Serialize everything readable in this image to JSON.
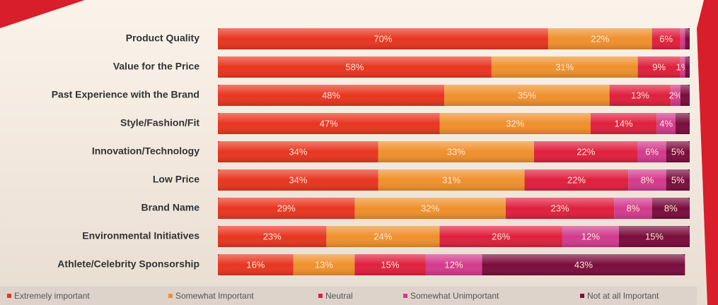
{
  "chart_data": {
    "type": "stacked-bar-horizontal",
    "categories": [
      "Product Quality",
      "Value for the Price",
      "Past Experience with the Brand",
      "Style/Fashion/Fit",
      "Innovation/Technology",
      "Low Price",
      "Brand Name",
      "Environmental Initiatives",
      "Athlete/Celebrity Sponsorship"
    ],
    "xlim": [
      0,
      100
    ],
    "series": [
      {
        "name": "Extremely important",
        "color": "#e8351f",
        "values": [
          70,
          58,
          48,
          47,
          34,
          34,
          29,
          23,
          16
        ],
        "value_labels": [
          "70%",
          "58%",
          "48%",
          "47%",
          "34%",
          "34%",
          "29%",
          "23%",
          "16%"
        ]
      },
      {
        "name": "Somewhat Important",
        "color": "#f0902c",
        "values": [
          22,
          31,
          35,
          32,
          33,
          31,
          32,
          24,
          13
        ],
        "value_labels": [
          "22%",
          "31%",
          "35%",
          "32%",
          "33%",
          "31%",
          "32%",
          "24%",
          "13%"
        ]
      },
      {
        "name": "Neutral",
        "color": "#e01f3d",
        "values": [
          6,
          9,
          13,
          14,
          22,
          22,
          23,
          26,
          15
        ],
        "value_labels": [
          "6%",
          "9%",
          "13%",
          "14%",
          "22%",
          "22%",
          "23%",
          "26%",
          "15%"
        ]
      },
      {
        "name": "Somewhat Unimportant",
        "color": "#d43a8c",
        "values": [
          1,
          1,
          2,
          4,
          6,
          8,
          8,
          12,
          12
        ],
        "value_labels": [
          null,
          "1%",
          "2%",
          "4%",
          "6%",
          "8%",
          "8%",
          "12%",
          "12%"
        ]
      },
      {
        "name": "Not at all Important",
        "color": "#7a0c3c",
        "values": [
          1,
          1,
          2,
          3,
          5,
          5,
          8,
          15,
          43
        ],
        "value_labels": [
          null,
          null,
          null,
          null,
          "5%",
          "5%",
          "8%",
          "15%",
          "43%"
        ]
      }
    ]
  }
}
